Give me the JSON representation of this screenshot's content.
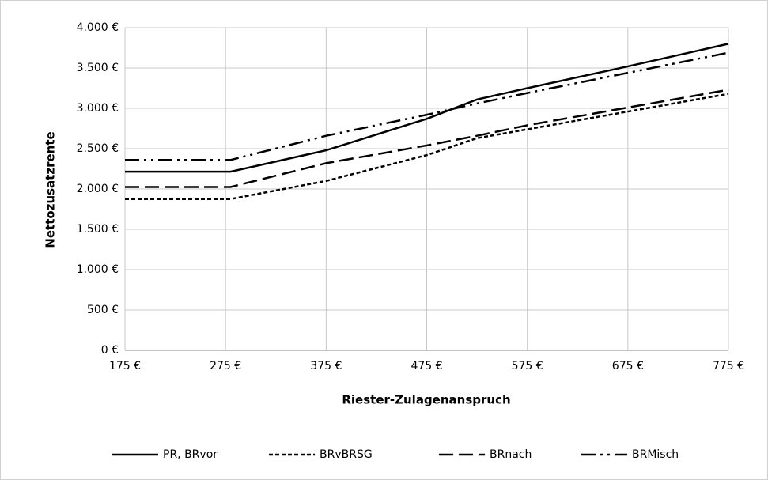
{
  "chart_data": {
    "type": "line",
    "xlabel": "Riester-Zulagenanspruch",
    "ylabel": "Nettozusatzrente",
    "x": [
      175,
      280,
      375,
      475,
      525,
      575,
      675,
      775
    ],
    "series": [
      {
        "name": "PR, BRvor",
        "color": "#000000",
        "values": [
          2215,
          2215,
          2480,
          2870,
          3110,
          3250,
          3520,
          3800
        ]
      },
      {
        "name": "BRvBRSG",
        "color": "#000000",
        "values": [
          1875,
          1875,
          2100,
          2420,
          2630,
          2740,
          2960,
          3180
        ]
      },
      {
        "name": "BRnach",
        "color": "#000000",
        "values": [
          2025,
          2025,
          2320,
          2540,
          2660,
          2790,
          3010,
          3230
        ]
      },
      {
        "name": "BRMisch",
        "color": "#000000",
        "values": [
          2360,
          2360,
          2660,
          2920,
          3060,
          3190,
          3440,
          3690
        ]
      }
    ],
    "xlim": [
      175,
      775
    ],
    "xticks": [
      {
        "value": 175,
        "label": "175 €"
      },
      {
        "value": 275,
        "label": "275 €"
      },
      {
        "value": 375,
        "label": "375 €"
      },
      {
        "value": 475,
        "label": "475 €"
      },
      {
        "value": 575,
        "label": "575 €"
      },
      {
        "value": 675,
        "label": "675 €"
      },
      {
        "value": 775,
        "label": "775 €"
      }
    ],
    "ylim": [
      0,
      4000
    ],
    "yticks": [
      {
        "value": 0,
        "label": "0 €"
      },
      {
        "value": 500,
        "label": "500 €"
      },
      {
        "value": 1000,
        "label": "1.000 €"
      },
      {
        "value": 1500,
        "label": "1.500 €"
      },
      {
        "value": 2000,
        "label": "2.000 €"
      },
      {
        "value": 2500,
        "label": "2.500 €"
      },
      {
        "value": 3000,
        "label": "3.000 €"
      },
      {
        "value": 3500,
        "label": "3.500 €"
      },
      {
        "value": 4000,
        "label": "4.000 €"
      }
    ],
    "grid": true,
    "legend": "bottom"
  }
}
